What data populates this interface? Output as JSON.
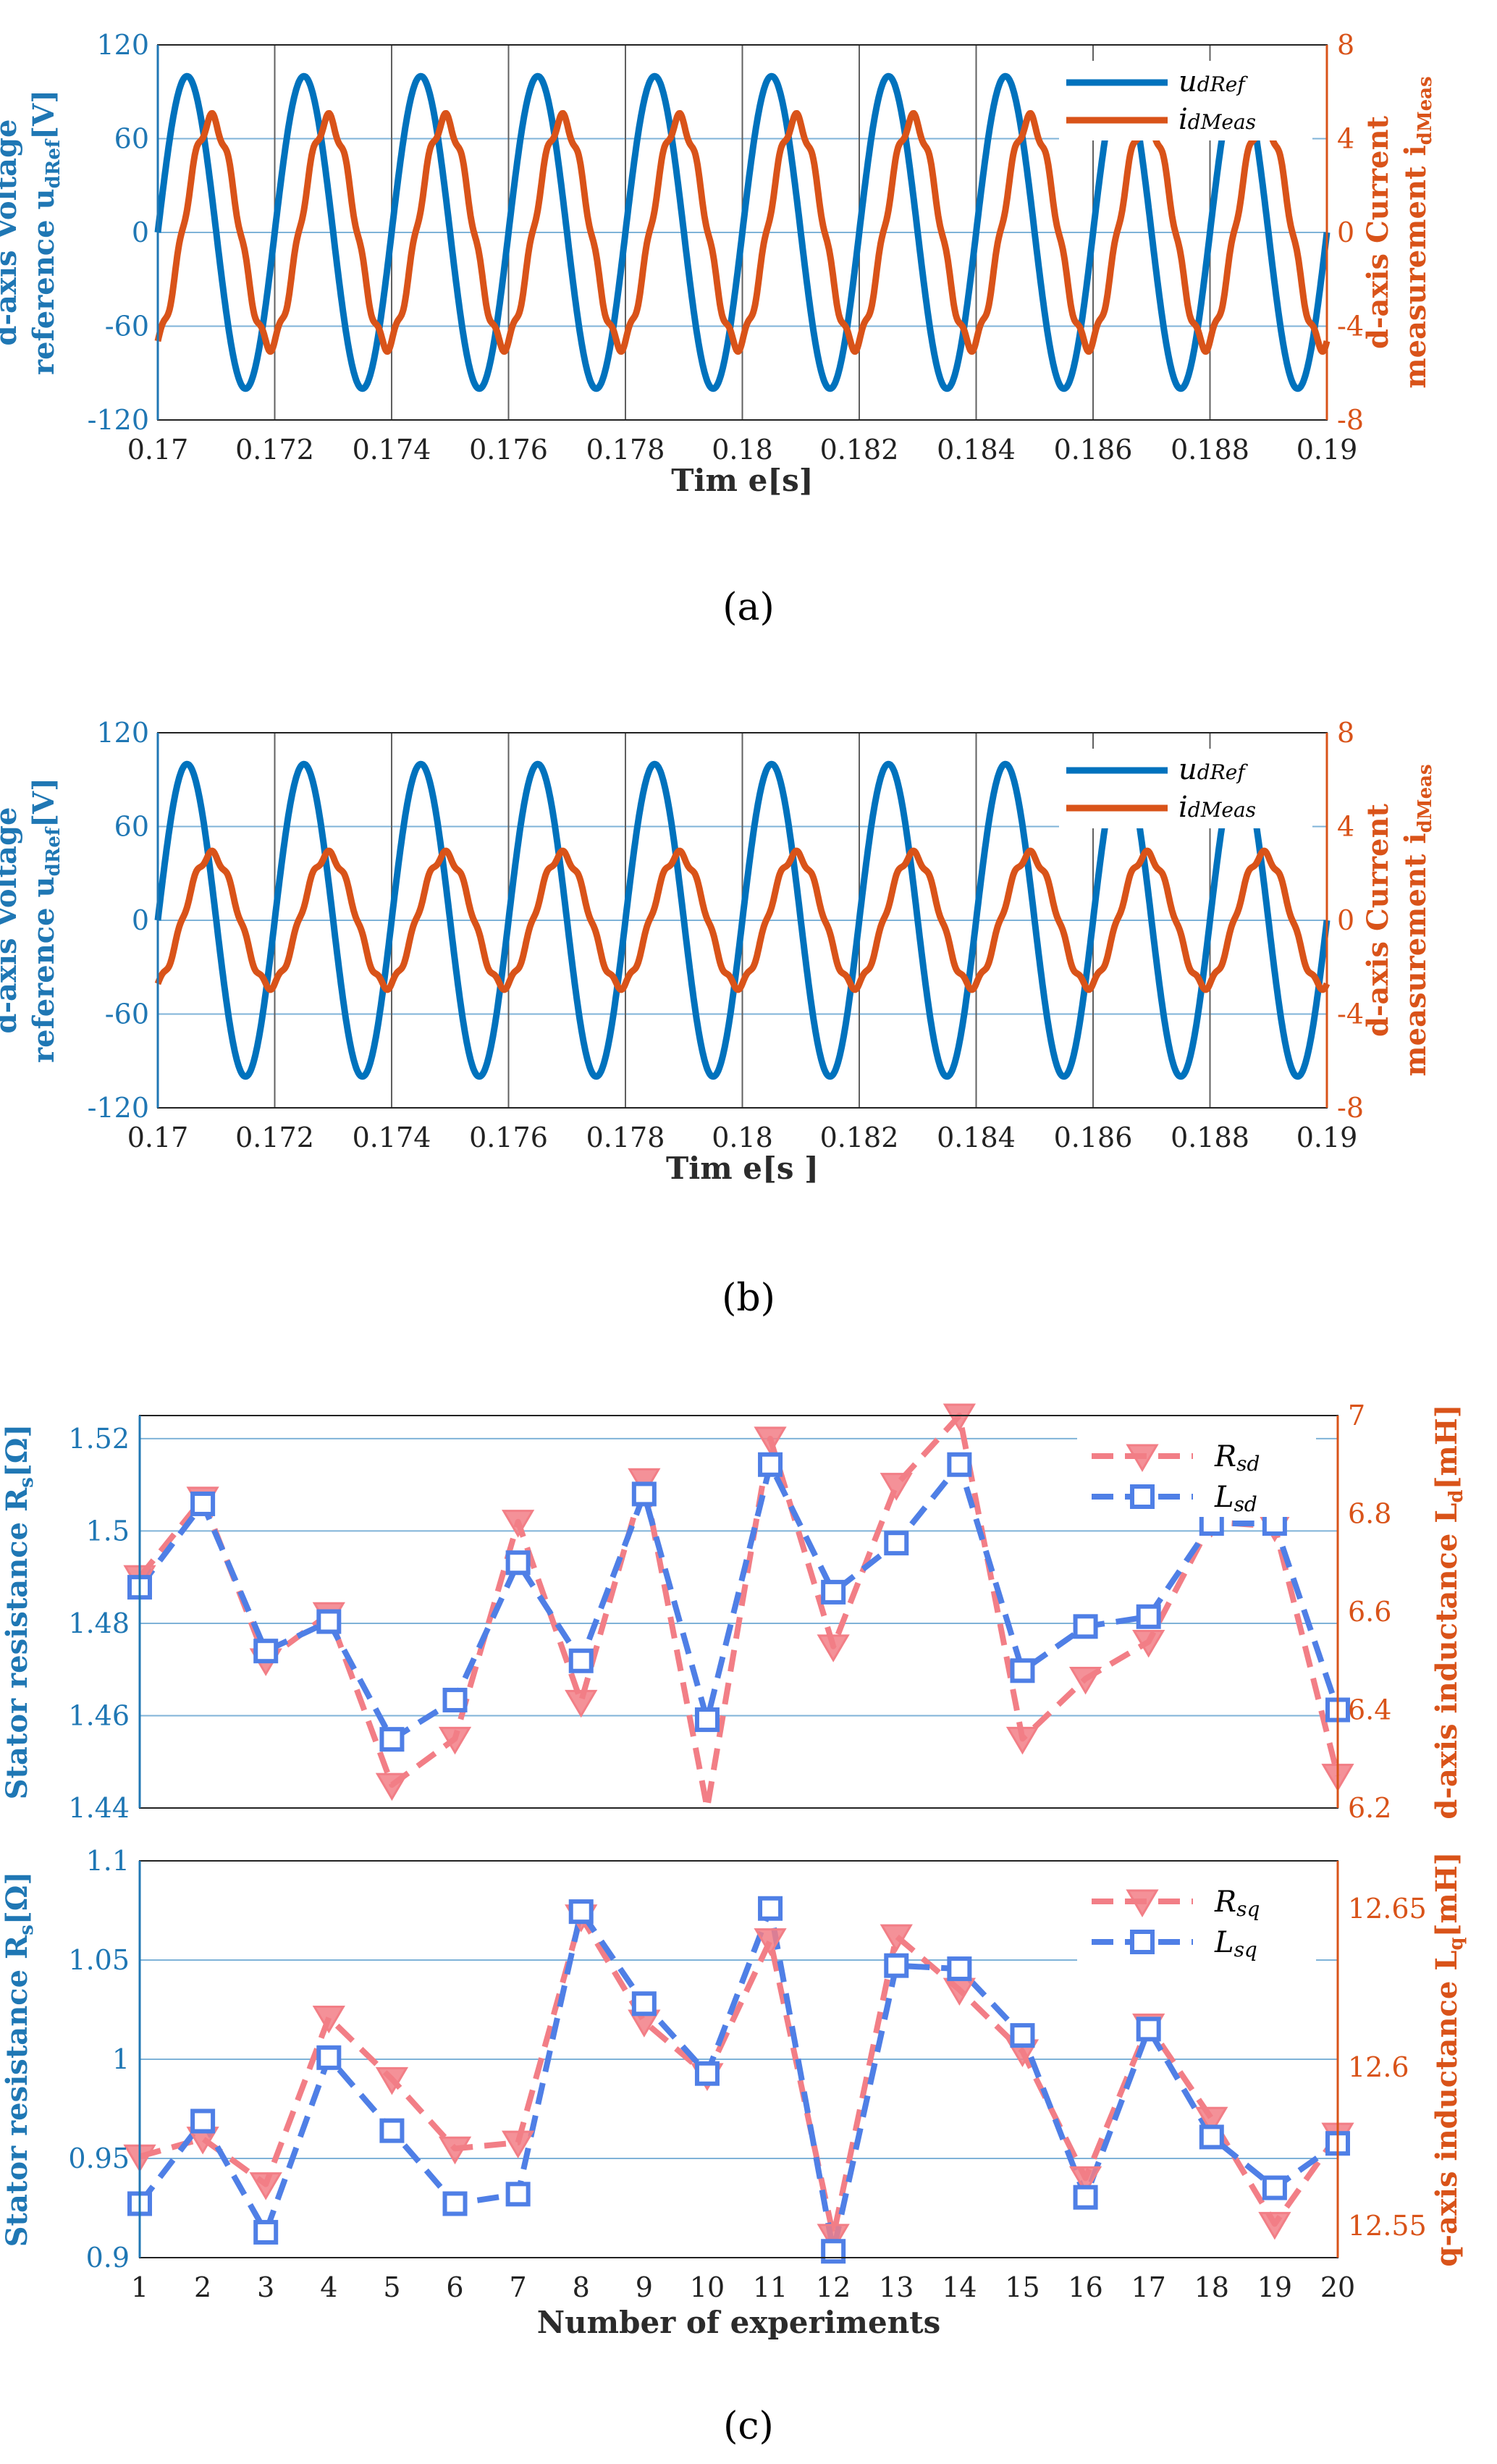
{
  "captions": [
    "(a)",
    "(b)",
    "(c)"
  ],
  "colors": {
    "blue": "#0072bd",
    "orange": "#d95319",
    "blue_axis": "#1f77b4",
    "pink": "#f27e86",
    "squareblue": "#4f7fe6",
    "grid": "#7fb3d8",
    "vgrid": "#606060"
  },
  "chart_data": [
    {
      "id": "a",
      "type": "line",
      "x_range": [
        0.17,
        0.19
      ],
      "x_ticks": [
        0.17,
        0.172,
        0.174,
        0.176,
        0.178,
        0.18,
        0.182,
        0.184,
        0.186,
        0.188,
        0.19
      ],
      "x_tick_labels": [
        "0.17",
        "0.172",
        "0.174",
        "0.176",
        "0.178",
        "0.18",
        "0.182",
        "0.184",
        "0.186",
        "0.188",
        "0.19"
      ],
      "xlabel": "Tim e[s]",
      "ylabel_left": [
        "d-axis Voltage",
        "reference u",
        "dRef",
        "[V]"
      ],
      "ylabel_right": [
        "d-axis Current",
        "measurement i",
        "dMeas"
      ],
      "ylim_left": [
        -120,
        120
      ],
      "y_ticks_left": [
        120,
        60,
        0,
        -60,
        -120
      ],
      "ylim_right": [
        -8,
        8
      ],
      "y_ticks_right": [
        8,
        4,
        0,
        -4,
        -8
      ],
      "legend": [
        {
          "name": "u",
          "sub": "dRef"
        },
        {
          "name": "i",
          "sub": "dMeas"
        }
      ],
      "series": [
        {
          "name": "udRef",
          "axis": "left",
          "amplitude": 100,
          "frequency_hz": 500,
          "phase_deg": 0
        },
        {
          "name": "idMeas",
          "axis": "right",
          "amplitude": 4.8,
          "frequency_hz": 500,
          "phase_deg": -75
        }
      ]
    },
    {
      "id": "b",
      "type": "line",
      "x_range": [
        0.17,
        0.19
      ],
      "x_ticks": [
        0.17,
        0.172,
        0.174,
        0.176,
        0.178,
        0.18,
        0.182,
        0.184,
        0.186,
        0.188,
        0.19
      ],
      "x_tick_labels": [
        "0.17",
        "0.172",
        "0.174",
        "0.176",
        "0.178",
        "0.18",
        "0.182",
        "0.184",
        "0.186",
        "0.188",
        "0.19"
      ],
      "xlabel": "Tim e[s ]",
      "ylabel_left": [
        "d-axis Voltage",
        "reference u",
        "dRef",
        "[V]"
      ],
      "ylabel_right": [
        "d-axis Current",
        "measurement i",
        "dMeas"
      ],
      "ylim_left": [
        -120,
        120
      ],
      "y_ticks_left": [
        120,
        60,
        0,
        -60,
        -120
      ],
      "ylim_right": [
        -8,
        8
      ],
      "y_ticks_right": [
        8,
        4,
        0,
        -4,
        -8
      ],
      "legend": [
        {
          "name": "u",
          "sub": "dRef"
        },
        {
          "name": "i",
          "sub": "dMeas"
        }
      ],
      "series": [
        {
          "name": "udRef",
          "axis": "left",
          "amplitude": 100,
          "frequency_hz": 500,
          "phase_deg": 0
        },
        {
          "name": "idMeas",
          "axis": "right",
          "amplitude": 2.8,
          "frequency_hz": 500,
          "phase_deg": -75
        }
      ]
    },
    {
      "id": "c1",
      "type": "line",
      "x": [
        1,
        2,
        3,
        4,
        5,
        6,
        7,
        8,
        9,
        10,
        11,
        12,
        13,
        14,
        15,
        16,
        17,
        18,
        19,
        20
      ],
      "ylabel_left": [
        "Stator resistance R",
        "s",
        "[Ω]"
      ],
      "ylabel_right": [
        "d-axis inductance L",
        "d",
        "[mH]"
      ],
      "ylim_left": [
        1.44,
        1.525
      ],
      "y_ticks_left": [
        1.52,
        1.5,
        1.48,
        1.46,
        1.44
      ],
      "y_tick_labels_left": [
        "1.52",
        "1.5",
        "1.48",
        "1.46",
        "1.44"
      ],
      "ylim_right": [
        6.2,
        7.0
      ],
      "y_ticks_right": [
        7,
        6.8,
        6.6,
        6.4,
        6.2
      ],
      "y_tick_labels_right": [
        "7",
        "6.8",
        "6.6",
        "6.4",
        "6.2"
      ],
      "legend": [
        {
          "name": "R",
          "sub": "sd"
        },
        {
          "name": "L",
          "sub": "sd"
        }
      ],
      "series": [
        {
          "name": "Rsd",
          "axis": "left",
          "marker": "triangle-down",
          "values": [
            1.49,
            1.507,
            1.472,
            1.482,
            1.445,
            1.455,
            1.502,
            1.463,
            1.511,
            1.438,
            1.52,
            1.475,
            1.51,
            1.525,
            1.455,
            1.468,
            1.476,
            1.502,
            1.501,
            1.447
          ]
        },
        {
          "name": "Lsd",
          "axis": "right",
          "marker": "square",
          "values": [
            6.65,
            6.82,
            6.52,
            6.58,
            6.34,
            6.42,
            6.7,
            6.5,
            6.84,
            6.38,
            6.9,
            6.64,
            6.74,
            6.9,
            6.48,
            6.57,
            6.59,
            6.78,
            6.78,
            6.4
          ]
        }
      ]
    },
    {
      "id": "c2",
      "type": "line",
      "x": [
        1,
        2,
        3,
        4,
        5,
        6,
        7,
        8,
        9,
        10,
        11,
        12,
        13,
        14,
        15,
        16,
        17,
        18,
        19,
        20
      ],
      "x_tick_labels": [
        "1",
        "2",
        "3",
        "4",
        "5",
        "6",
        "7",
        "8",
        "9",
        "10",
        "11",
        "12",
        "13",
        "14",
        "15",
        "16",
        "17",
        "18",
        "19",
        "20"
      ],
      "xlabel": "Number of experiments",
      "ylabel_left": [
        "Stator resistance R",
        "s",
        "[Ω]"
      ],
      "ylabel_right": [
        "q-axis inductance L",
        "q",
        "[mH]"
      ],
      "ylim_left": [
        0.9,
        1.1
      ],
      "y_ticks_left": [
        1.1,
        1.05,
        1.0,
        0.95,
        0.9
      ],
      "y_tick_labels_left": [
        "1.1",
        "1.05",
        "1",
        "0.95",
        "0.9"
      ],
      "ylim_right": [
        12.54,
        12.665
      ],
      "y_ticks_right": [
        12.65,
        12.6,
        12.55
      ],
      "y_tick_labels_right": [
        "12.65",
        "12.6",
        "12.55"
      ],
      "legend": [
        {
          "name": "R",
          "sub": "sq"
        },
        {
          "name": "L",
          "sub": "sq"
        }
      ],
      "series": [
        {
          "name": "Rsq",
          "axis": "left",
          "marker": "triangle-down",
          "values": [
            0.951,
            0.96,
            0.937,
            1.021,
            0.99,
            0.955,
            0.958,
            1.072,
            1.019,
            0.992,
            1.06,
            0.911,
            1.062,
            1.035,
            1.004,
            0.94,
            1.017,
            0.97,
            0.917,
            0.962
          ]
        },
        {
          "name": "Lsq",
          "axis": "right",
          "marker": "square",
          "values": [
            12.557,
            12.583,
            12.548,
            12.603,
            12.58,
            12.557,
            12.56,
            12.649,
            12.62,
            12.598,
            12.65,
            12.542,
            12.632,
            12.631,
            12.61,
            12.559,
            12.612,
            12.578,
            12.562,
            12.576
          ]
        }
      ]
    }
  ]
}
